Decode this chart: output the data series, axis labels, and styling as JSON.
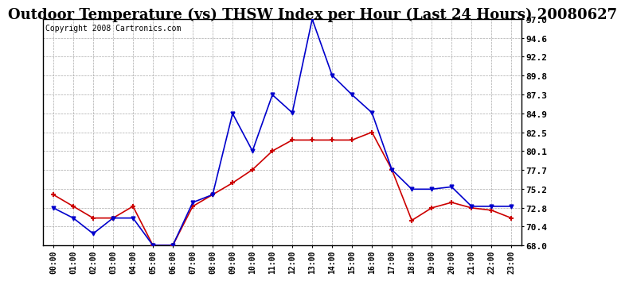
{
  "title": "Outdoor Temperature (vs) THSW Index per Hour (Last 24 Hours) 20080627",
  "copyright": "Copyright 2008 Cartronics.com",
  "hours": [
    "00:00",
    "01:00",
    "02:00",
    "03:00",
    "04:00",
    "05:00",
    "06:00",
    "07:00",
    "08:00",
    "09:00",
    "10:00",
    "11:00",
    "12:00",
    "13:00",
    "14:00",
    "15:00",
    "16:00",
    "17:00",
    "18:00",
    "19:00",
    "20:00",
    "21:00",
    "22:00",
    "23:00"
  ],
  "temp": [
    74.5,
    73.0,
    71.5,
    71.5,
    73.0,
    68.0,
    68.0,
    73.0,
    74.5,
    76.0,
    77.7,
    80.1,
    81.5,
    81.5,
    81.5,
    81.5,
    82.5,
    77.7,
    71.2,
    72.8,
    73.5,
    72.8,
    72.5,
    71.5
  ],
  "thsw": [
    72.8,
    71.5,
    69.5,
    71.5,
    71.5,
    68.0,
    68.0,
    73.5,
    74.5,
    84.9,
    80.1,
    87.3,
    85.0,
    97.0,
    89.8,
    87.3,
    85.0,
    77.7,
    75.2,
    75.2,
    75.5,
    73.0,
    73.0,
    73.0
  ],
  "ylim": [
    68.0,
    97.0
  ],
  "yticks": [
    68.0,
    70.4,
    72.8,
    75.2,
    77.7,
    80.1,
    82.5,
    84.9,
    87.3,
    89.8,
    92.2,
    94.6,
    97.0
  ],
  "temp_color": "#cc0000",
  "thsw_color": "#0000cc",
  "bg_color": "#ffffff",
  "grid_color": "#aaaaaa",
  "title_fontsize": 13,
  "copyright_fontsize": 7
}
